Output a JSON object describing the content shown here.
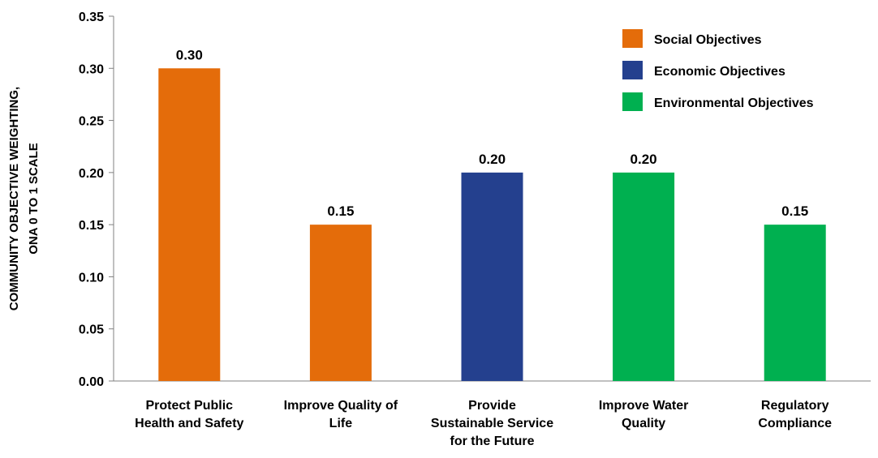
{
  "chart_data": {
    "type": "bar",
    "categories": [
      [
        "Protect Public",
        "Health and Safety"
      ],
      [
        "Improve Quality of",
        "Life"
      ],
      [
        "Provide",
        "Sustainable Service",
        "for the Future"
      ],
      [
        "Improve Water",
        "Quality"
      ],
      [
        "Regulatory",
        "Compliance"
      ]
    ],
    "values": [
      0.3,
      0.15,
      0.2,
      0.2,
      0.15
    ],
    "value_labels": [
      "0.30",
      "0.15",
      "0.20",
      "0.20",
      "0.15"
    ],
    "bar_group": [
      0,
      0,
      1,
      2,
      2
    ],
    "groups": [
      {
        "name": "Social Objectives",
        "color": "#E46C0A"
      },
      {
        "name": "Economic Objectives",
        "color": "#24408E"
      },
      {
        "name": "Environmental Objectives",
        "color": "#00B050"
      }
    ],
    "ylabel_lines": [
      "COMMUNITY OBJECTIVE WEIGHTING,",
      "ONA 0 TO 1 SCALE"
    ],
    "ylim": [
      0,
      0.35
    ],
    "yticks": [
      "0.00",
      "0.05",
      "0.10",
      "0.15",
      "0.20",
      "0.25",
      "0.30",
      "0.35"
    ],
    "legend_position": "top-right",
    "grid": false
  }
}
